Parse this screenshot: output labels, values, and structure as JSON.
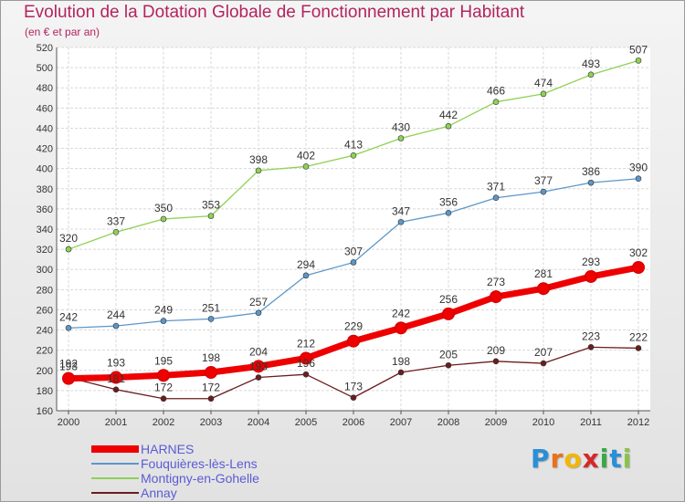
{
  "header": {
    "title": "Evolution de la Dotation Globale de Fonctionnement par Habitant",
    "subtitle": "(en € et par an)"
  },
  "logo": {
    "letters": [
      "P",
      "r",
      "o",
      "x",
      "i",
      "t",
      "i"
    ],
    "colors": [
      "#2a8fd6",
      "#e8711a",
      "#f2b705",
      "#d62828",
      "#3aa845",
      "#2a8fd6",
      "#8bc34a"
    ]
  },
  "chart_data": {
    "type": "line",
    "title": "Evolution de la Dotation Globale de Fonctionnement par Habitant",
    "subtitle": "(en € et par an)",
    "xlabel": "",
    "ylabel": "",
    "x": [
      2000,
      2001,
      2002,
      2003,
      2004,
      2005,
      2006,
      2007,
      2008,
      2009,
      2010,
      2011,
      2012
    ],
    "ylim": [
      160,
      520
    ],
    "yticks": [
      160,
      180,
      200,
      220,
      240,
      260,
      280,
      300,
      320,
      340,
      360,
      380,
      400,
      420,
      440,
      460,
      480,
      500,
      520
    ],
    "grid": true,
    "legend_position": "bottom-left",
    "series": [
      {
        "name": "HARNES",
        "color": "#ee0000",
        "values": [
          192,
          193,
          195,
          198,
          204,
          212,
          229,
          242,
          256,
          273,
          281,
          293,
          302
        ]
      },
      {
        "name": "Fouquières-lès-Lens",
        "color": "#5b97c9",
        "values": [
          242,
          244,
          249,
          251,
          257,
          294,
          307,
          347,
          356,
          371,
          377,
          386,
          390
        ]
      },
      {
        "name": "Montigny-en-Gohelle",
        "color": "#8fd155",
        "values": [
          320,
          337,
          350,
          353,
          398,
          402,
          413,
          430,
          442,
          466,
          474,
          493,
          507
        ]
      },
      {
        "name": "Annay",
        "color": "#6b1d1d",
        "values": [
          193,
          181,
          172,
          172,
          193,
          196,
          173,
          198,
          205,
          209,
          207,
          223,
          222
        ]
      }
    ]
  }
}
